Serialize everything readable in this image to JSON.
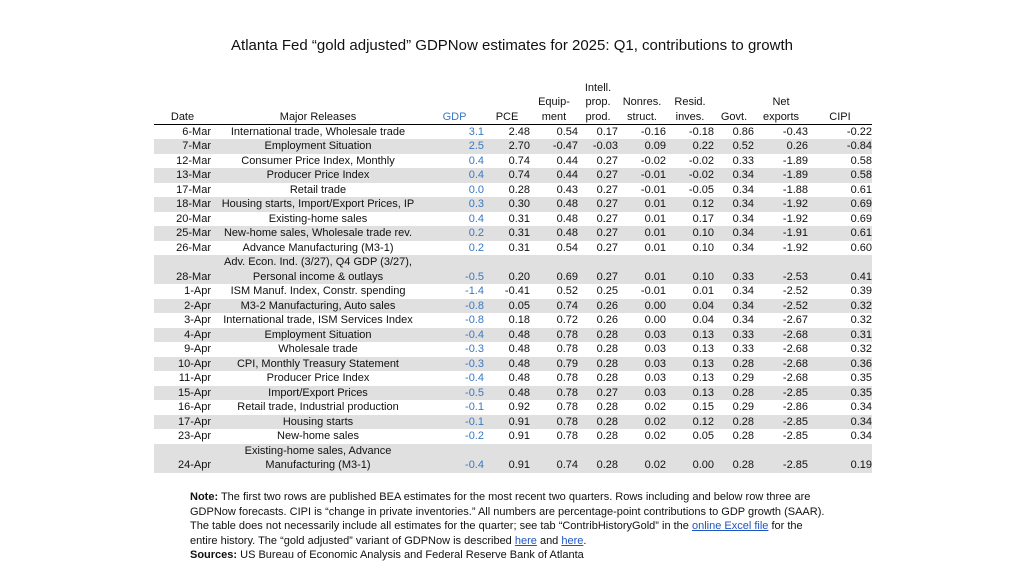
{
  "title": "Atlanta Fed “gold adjusted” GDPNow estimates for 2025: Q1, contributions to growth",
  "headers": {
    "date": "Date",
    "major_releases": "Major Releases",
    "gdp": "GDP",
    "pce": "PCE",
    "equipment_1": "Equip-",
    "equipment_2": "ment",
    "ip_1": "Intell.",
    "ip_2": "prop.",
    "ip_3": "prod.",
    "nonres_1": "Nonres.",
    "nonres_2": "struct.",
    "resid_1": "Resid.",
    "resid_2": "inves.",
    "govt": "Govt.",
    "netexp_1": "Net",
    "netexp_2": "exports",
    "cipi": "CIPI"
  },
  "rows": [
    {
      "date": "6-Mar",
      "release": "International trade, Wholesale trade",
      "gdp": "3.1",
      "pce": "2.48",
      "equip": "0.54",
      "ip": "0.17",
      "nonres": "-0.16",
      "resid": "-0.18",
      "govt": "0.86",
      "netexp": "-0.43",
      "cipi": "-0.22"
    },
    {
      "date": "7-Mar",
      "release": "Employment Situation",
      "gdp": "2.5",
      "pce": "2.70",
      "equip": "-0.47",
      "ip": "-0.03",
      "nonres": "0.09",
      "resid": "0.22",
      "govt": "0.52",
      "netexp": "0.26",
      "cipi": "-0.84"
    },
    {
      "date": "12-Mar",
      "release": "Consumer Price Index, Monthly",
      "gdp": "0.4",
      "pce": "0.74",
      "equip": "0.44",
      "ip": "0.27",
      "nonres": "-0.02",
      "resid": "-0.02",
      "govt": "0.33",
      "netexp": "-1.89",
      "cipi": "0.58"
    },
    {
      "date": "13-Mar",
      "release": "Producer Price Index",
      "gdp": "0.4",
      "pce": "0.74",
      "equip": "0.44",
      "ip": "0.27",
      "nonres": "-0.01",
      "resid": "-0.02",
      "govt": "0.34",
      "netexp": "-1.89",
      "cipi": "0.58"
    },
    {
      "date": "17-Mar",
      "release": "Retail trade",
      "gdp": "0.0",
      "pce": "0.28",
      "equip": "0.43",
      "ip": "0.27",
      "nonres": "-0.01",
      "resid": "-0.05",
      "govt": "0.34",
      "netexp": "-1.88",
      "cipi": "0.61"
    },
    {
      "date": "18-Mar",
      "release": "Housing starts, Import/Export Prices, IP",
      "gdp": "0.3",
      "pce": "0.30",
      "equip": "0.48",
      "ip": "0.27",
      "nonres": "0.01",
      "resid": "0.12",
      "govt": "0.34",
      "netexp": "-1.92",
      "cipi": "0.69"
    },
    {
      "date": "20-Mar",
      "release": "Existing-home sales",
      "gdp": "0.4",
      "pce": "0.31",
      "equip": "0.48",
      "ip": "0.27",
      "nonres": "0.01",
      "resid": "0.17",
      "govt": "0.34",
      "netexp": "-1.92",
      "cipi": "0.69"
    },
    {
      "date": "25-Mar",
      "release": "New-home sales, Wholesale trade rev.",
      "gdp": "0.2",
      "pce": "0.31",
      "equip": "0.48",
      "ip": "0.27",
      "nonres": "0.01",
      "resid": "0.10",
      "govt": "0.34",
      "netexp": "-1.91",
      "cipi": "0.61"
    },
    {
      "date": "26-Mar",
      "release": "Advance Manufacturing (M3-1)",
      "gdp": "0.2",
      "pce": "0.31",
      "equip": "0.54",
      "ip": "0.27",
      "nonres": "0.01",
      "resid": "0.10",
      "govt": "0.34",
      "netexp": "-1.92",
      "cipi": "0.60"
    },
    {
      "date": "28-Mar",
      "release": "Adv. Econ. Ind. (3/27), Q4 GDP (3/27),",
      "release2": "Personal income & outlays",
      "gdp": "-0.5",
      "pce": "0.20",
      "equip": "0.69",
      "ip": "0.27",
      "nonres": "0.01",
      "resid": "0.10",
      "govt": "0.33",
      "netexp": "-2.53",
      "cipi": "0.41"
    },
    {
      "date": "1-Apr",
      "release": "ISM Manuf. Index, Constr. spending",
      "gdp": "-1.4",
      "pce": "-0.41",
      "equip": "0.52",
      "ip": "0.25",
      "nonres": "-0.01",
      "resid": "0.01",
      "govt": "0.34",
      "netexp": "-2.52",
      "cipi": "0.39"
    },
    {
      "date": "2-Apr",
      "release": "M3-2 Manufacturing, Auto sales",
      "gdp": "-0.8",
      "pce": "0.05",
      "equip": "0.74",
      "ip": "0.26",
      "nonres": "0.00",
      "resid": "0.04",
      "govt": "0.34",
      "netexp": "-2.52",
      "cipi": "0.32"
    },
    {
      "date": "3-Apr",
      "release": "International trade, ISM Services Index",
      "gdp": "-0.8",
      "pce": "0.18",
      "equip": "0.72",
      "ip": "0.26",
      "nonres": "0.00",
      "resid": "0.04",
      "govt": "0.34",
      "netexp": "-2.67",
      "cipi": "0.32"
    },
    {
      "date": "4-Apr",
      "release": "Employment Situation",
      "gdp": "-0.4",
      "pce": "0.48",
      "equip": "0.78",
      "ip": "0.28",
      "nonres": "0.03",
      "resid": "0.13",
      "govt": "0.33",
      "netexp": "-2.68",
      "cipi": "0.31"
    },
    {
      "date": "9-Apr",
      "release": "Wholesale trade",
      "gdp": "-0.3",
      "pce": "0.48",
      "equip": "0.78",
      "ip": "0.28",
      "nonres": "0.03",
      "resid": "0.13",
      "govt": "0.33",
      "netexp": "-2.68",
      "cipi": "0.32"
    },
    {
      "date": "10-Apr",
      "release": "CPI, Monthly Treasury Statement",
      "gdp": "-0.3",
      "pce": "0.48",
      "equip": "0.79",
      "ip": "0.28",
      "nonres": "0.03",
      "resid": "0.13",
      "govt": "0.28",
      "netexp": "-2.68",
      "cipi": "0.36"
    },
    {
      "date": "11-Apr",
      "release": "Producer Price Index",
      "gdp": "-0.4",
      "pce": "0.48",
      "equip": "0.78",
      "ip": "0.28",
      "nonres": "0.03",
      "resid": "0.13",
      "govt": "0.29",
      "netexp": "-2.68",
      "cipi": "0.35"
    },
    {
      "date": "15-Apr",
      "release": "Import/Export Prices",
      "gdp": "-0.5",
      "pce": "0.48",
      "equip": "0.78",
      "ip": "0.27",
      "nonres": "0.03",
      "resid": "0.13",
      "govt": "0.28",
      "netexp": "-2.85",
      "cipi": "0.35"
    },
    {
      "date": "16-Apr",
      "release": "Retail trade, Industrial production",
      "gdp": "-0.1",
      "pce": "0.92",
      "equip": "0.78",
      "ip": "0.28",
      "nonres": "0.02",
      "resid": "0.15",
      "govt": "0.29",
      "netexp": "-2.86",
      "cipi": "0.34"
    },
    {
      "date": "17-Apr",
      "release": "Housing starts",
      "gdp": "-0.1",
      "pce": "0.91",
      "equip": "0.78",
      "ip": "0.28",
      "nonres": "0.02",
      "resid": "0.12",
      "govt": "0.28",
      "netexp": "-2.85",
      "cipi": "0.34"
    },
    {
      "date": "23-Apr",
      "release": "New-home sales",
      "gdp": "-0.2",
      "pce": "0.91",
      "equip": "0.78",
      "ip": "0.28",
      "nonres": "0.02",
      "resid": "0.05",
      "govt": "0.28",
      "netexp": "-2.85",
      "cipi": "0.34"
    },
    {
      "date": "24-Apr",
      "release": "Existing-home sales, Advance",
      "release2": "Manufacturing (M3-1)",
      "gdp": "-0.4",
      "pce": "0.91",
      "equip": "0.74",
      "ip": "0.28",
      "nonres": "0.02",
      "resid": "0.00",
      "govt": "0.28",
      "netexp": "-2.85",
      "cipi": "0.19"
    }
  ],
  "notes": {
    "note_label": "Note:",
    "note_text_1": " The first two rows are published BEA estimates for the most recent two quarters. Rows including and below row three are GDPNow forecasts. CIPI is “change in private inventories.” All numbers are percentage-point contributions to GDP growth (SAAR). The table does not necessarily include all estimates for the quarter; see tab “ContribHistoryGold” in the ",
    "link_excel": "online Excel file",
    "note_text_2": " for the entire history. The “gold adjusted” variant of GDPNow is described ",
    "link_here_1": "here",
    "note_and": " and ",
    "link_here_2": "here",
    "note_end": ".",
    "sources_label": "Sources:",
    "sources_text": " US Bureau of Economic Analysis and Federal Reserve Bank of Atlanta"
  },
  "colors": {
    "gdp_text": "#3a78c2",
    "shade": "#e0e0e0",
    "link": "#1f55c2"
  }
}
